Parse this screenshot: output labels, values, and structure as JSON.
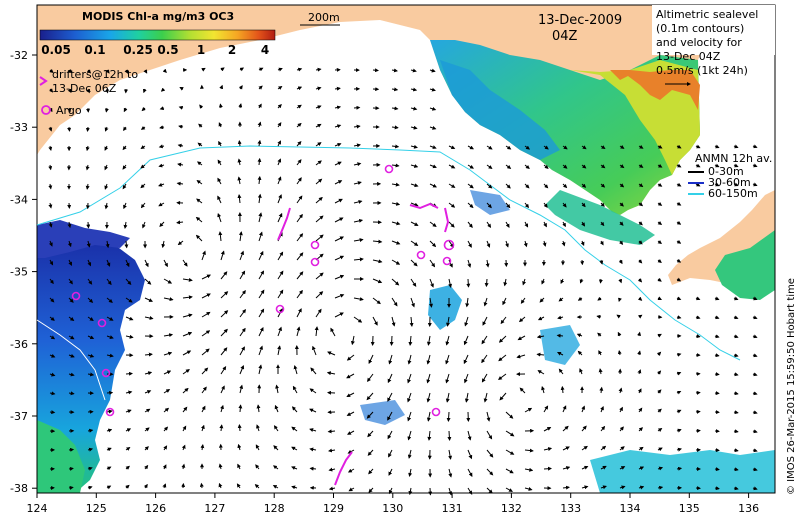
{
  "map": {
    "colorbar": {
      "title": "MODIS Chl-a mg/m3 OC3",
      "ticks": [
        "0.05",
        "0.1",
        "0.25",
        "0.5",
        "1",
        "2",
        "4"
      ],
      "colors": [
        "#1a1f8c",
        "#1d5fd1",
        "#19a6e8",
        "#1fd0a0",
        "#3ccf4c",
        "#b4df32",
        "#f2e531",
        "#f5a623",
        "#e3541a",
        "#b01c12"
      ]
    },
    "contour_label": "200m",
    "date": "13-Dec-2009",
    "time": "04Z",
    "legend_altimetry": [
      "Altimetric sealevel",
      "(0.1m contours)",
      "and velocity for",
      "13-Dec 04Z",
      "0.5m/s (1kt 24h)"
    ],
    "legend_anmn": {
      "title": "ANMN 12h av.",
      "items": [
        "0-30m",
        "30-60m",
        "60-150m"
      ],
      "colors": [
        "#000000",
        "#1b30c8",
        "#34d0e8"
      ]
    },
    "legend_drifters": [
      "drifters@12h to",
      "13-Dec 06Z"
    ],
    "legend_argo": "Argo",
    "x_ticks": [
      "124",
      "125",
      "126",
      "127",
      "128",
      "129",
      "130",
      "131",
      "132",
      "133",
      "134",
      "135",
      "136"
    ],
    "y_ticks": [
      "-32",
      "-33",
      "-34",
      "-35",
      "-36",
      "-37",
      "-38"
    ],
    "credit": "© IMOS 26-Mar-2015 15:59:50 Hobart time",
    "land_color": "#f9cba0",
    "marker_color": "#e020e0"
  }
}
